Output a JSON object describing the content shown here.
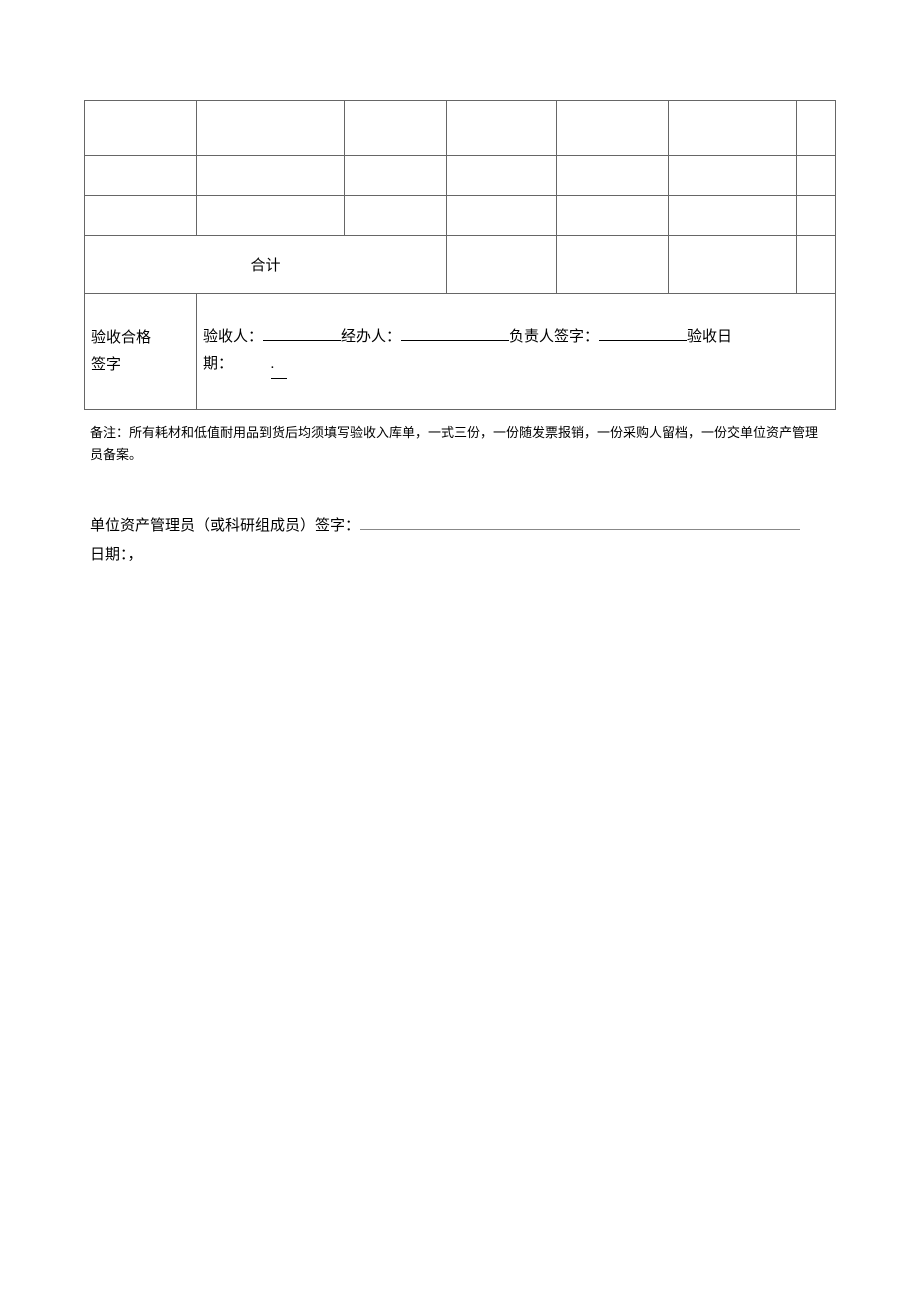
{
  "table": {
    "total_label": "合计",
    "signature_section": {
      "left_line1": "验收合格",
      "left_line2": "签字",
      "inspector_label": "验收人：",
      "handler_label": "经办人：",
      "responsible_label": "负责人签字：",
      "date_label": "验收日",
      "date_suffix": "期：",
      "dot": "."
    },
    "column_widths": [
      "112px",
      "148px",
      "102px",
      "110px",
      "112px",
      "128px"
    ],
    "border_color": "#666666"
  },
  "note": {
    "text": "备注：所有耗材和低值耐用品到货后均须填写验收入库单，一式三份，一份随发票报销，一份采购人留档，一份交单位资产管理员备案。"
  },
  "manager": {
    "sign_label": "单位资产管理员（或科研组成员）签字：",
    "date_label": "日期：，"
  },
  "styling": {
    "background_color": "#ffffff",
    "text_color": "#000000",
    "font_family": "SimSun",
    "base_font_size": 14,
    "label_font_size": 15,
    "note_font_size": 13,
    "underline_color": "#888888"
  }
}
